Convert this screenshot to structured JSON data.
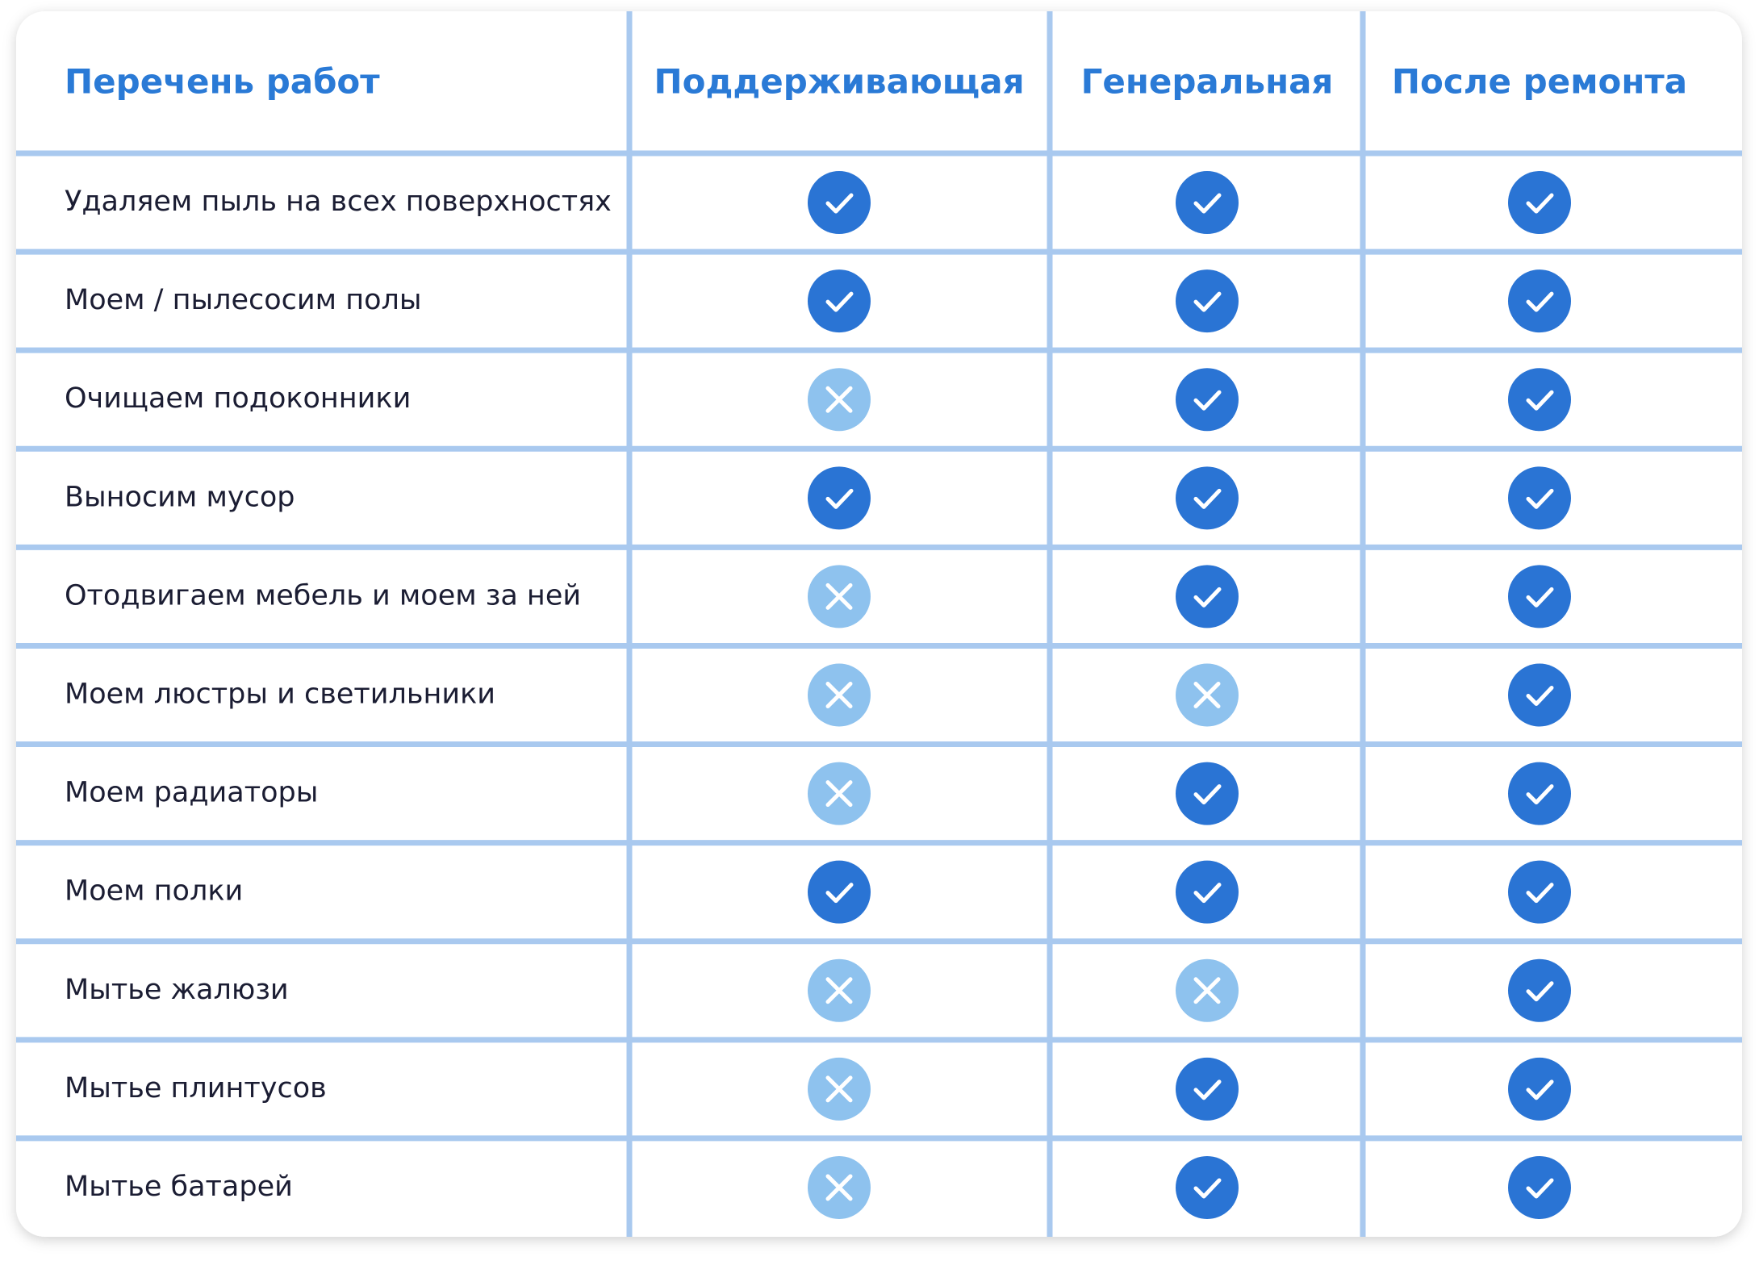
{
  "table": {
    "header": [
      "Перечень работ",
      "Поддерживающая",
      "Генеральная",
      "После ремонта"
    ],
    "rows": [
      {
        "label": "Удаляем пыль на всех поверхностях",
        "values": [
          true,
          true,
          true
        ]
      },
      {
        "label": "Моем / пылесосим полы",
        "values": [
          true,
          true,
          true
        ]
      },
      {
        "label": "Очищаем подоконники",
        "values": [
          false,
          true,
          true
        ]
      },
      {
        "label": "Выносим мусор",
        "values": [
          true,
          true,
          true
        ]
      },
      {
        "label": "Отодвигаем мебель и моем за ней",
        "values": [
          false,
          true,
          true
        ]
      },
      {
        "label": "Моем люстры и светильники",
        "values": [
          false,
          false,
          true
        ]
      },
      {
        "label": "Моем радиаторы",
        "values": [
          false,
          true,
          true
        ]
      },
      {
        "label": "Моем полки",
        "values": [
          true,
          true,
          true
        ]
      },
      {
        "label": "Мытье жалюзи",
        "values": [
          false,
          false,
          true
        ]
      },
      {
        "label": "Мытье плинтусов",
        "values": [
          false,
          true,
          true
        ]
      },
      {
        "label": "Мытье батарей",
        "values": [
          false,
          true,
          true
        ]
      }
    ]
  }
}
